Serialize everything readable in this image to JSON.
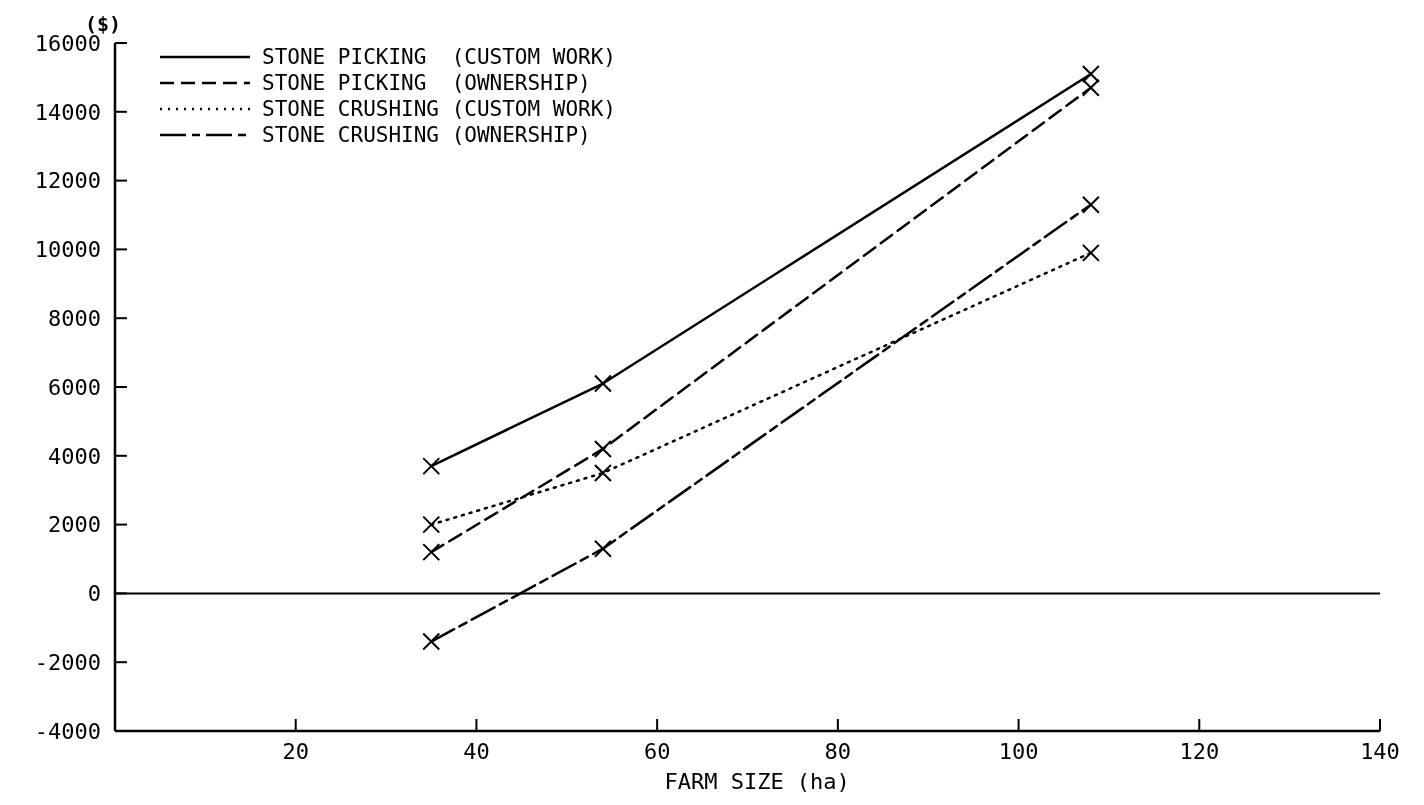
{
  "chart_data": {
    "type": "line",
    "ylabel": "($)",
    "xlabel": "FARM SIZE (ha)",
    "x": [
      35,
      54,
      108
    ],
    "series": [
      {
        "name": "STONE PICKING  (CUSTOM WORK)",
        "color": "#000000",
        "line_style": "solid",
        "values": [
          3700,
          6100,
          15100
        ]
      },
      {
        "name": "STONE PICKING  (OWNERSHIP)",
        "color": "#000000",
        "line_style": "dashed",
        "values": [
          1200,
          4200,
          14700
        ]
      },
      {
        "name": "STONE CRUSHING (CUSTOM WORK)",
        "color": "#000000",
        "line_style": "dotted",
        "values": [
          2000,
          3500,
          9900
        ]
      },
      {
        "name": "STONE CRUSHING (OWNERSHIP)",
        "color": "#000000",
        "line_style": "dashdot",
        "values": [
          -1400,
          1300,
          11300
        ]
      }
    ],
    "xlim": [
      0,
      140
    ],
    "xticks": [
      20,
      40,
      60,
      80,
      100,
      120,
      140
    ],
    "ylim": [
      -4000,
      16000
    ],
    "yticks": [
      -4000,
      -2000,
      0,
      2000,
      4000,
      6000,
      8000,
      10000,
      12000,
      14000,
      16000
    ],
    "ref_lines": [
      {
        "axis": "y",
        "value": 0,
        "color": "#000000"
      }
    ],
    "marker": "cross",
    "legend": "top left",
    "grid": false
  }
}
